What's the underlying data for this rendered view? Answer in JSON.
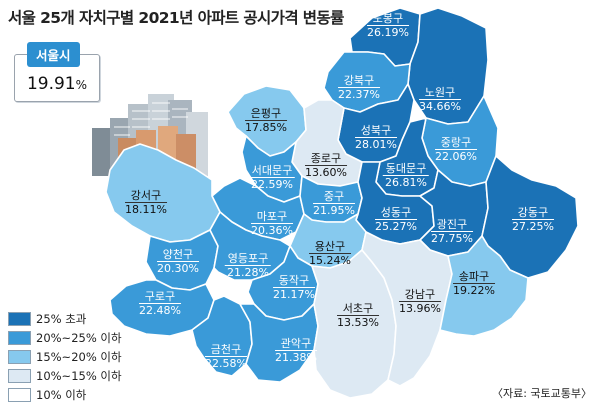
{
  "title": "서울 25개 자치구별 2021년 아파트 공시가격 변동률",
  "seoul": {
    "label": "서울시",
    "value": "19.91",
    "unit": "%"
  },
  "colors": {
    "over25": "#1b72b6",
    "r20_25": "#3a9ad8",
    "r15_20": "#86c9ee",
    "r10_15": "#dde9f3",
    "under10": "#ffffff",
    "border": "#ffffff"
  },
  "legend": [
    {
      "label": "25% 초과",
      "color": "#1b72b6"
    },
    {
      "label": "20%~25% 이하",
      "color": "#3a9ad8"
    },
    {
      "label": "15%~20% 이하",
      "color": "#86c9ee"
    },
    {
      "label": "10%~15% 이하",
      "color": "#dde9f3"
    },
    {
      "label": "10% 이하",
      "color": "#ffffff"
    }
  ],
  "districts": [
    {
      "name": "도봉구",
      "value": "26.19%",
      "class": "over25"
    },
    {
      "name": "강북구",
      "value": "22.37%",
      "class": "r20_25"
    },
    {
      "name": "노원구",
      "value": "34.66%",
      "class": "over25"
    },
    {
      "name": "은평구",
      "value": "17.85%",
      "class": "r15_20"
    },
    {
      "name": "성북구",
      "value": "28.01%",
      "class": "over25"
    },
    {
      "name": "중랑구",
      "value": "22.06%",
      "class": "r20_25"
    },
    {
      "name": "종로구",
      "value": "13.60%",
      "class": "r10_15"
    },
    {
      "name": "서대문구",
      "value": "22.59%",
      "class": "r20_25"
    },
    {
      "name": "동대문구",
      "value": "26.81%",
      "class": "over25"
    },
    {
      "name": "강서구",
      "value": "18.11%",
      "class": "r15_20"
    },
    {
      "name": "중구",
      "value": "21.95%",
      "class": "r20_25"
    },
    {
      "name": "마포구",
      "value": "20.36%",
      "class": "r20_25"
    },
    {
      "name": "성동구",
      "value": "25.27%",
      "class": "over25"
    },
    {
      "name": "광진구",
      "value": "27.75%",
      "class": "over25"
    },
    {
      "name": "강동구",
      "value": "27.25%",
      "class": "over25"
    },
    {
      "name": "용산구",
      "value": "15.24%",
      "class": "r15_20"
    },
    {
      "name": "양천구",
      "value": "20.30%",
      "class": "r20_25"
    },
    {
      "name": "영등포구",
      "value": "21.28%",
      "class": "r20_25"
    },
    {
      "name": "동작구",
      "value": "21.17%",
      "class": "r20_25"
    },
    {
      "name": "송파구",
      "value": "19.22%",
      "class": "r15_20"
    },
    {
      "name": "구로구",
      "value": "22.48%",
      "class": "r20_25"
    },
    {
      "name": "서초구",
      "value": "13.53%",
      "class": "r10_15"
    },
    {
      "name": "강남구",
      "value": "13.96%",
      "class": "r10_15"
    },
    {
      "name": "금천구",
      "value": "22.58%",
      "class": "r20_25"
    },
    {
      "name": "관악구",
      "value": "21.38%",
      "class": "r20_25"
    }
  ],
  "source": "〈자료: 국토교통부〉"
}
